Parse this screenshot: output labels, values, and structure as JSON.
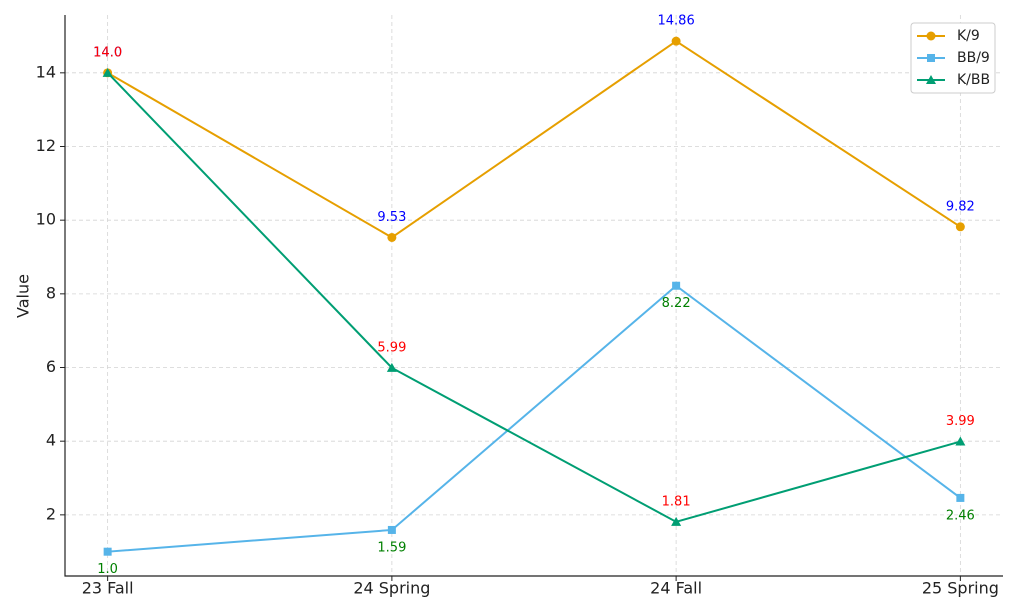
{
  "chart_data": {
    "type": "line",
    "y_label": "Value",
    "categories": [
      "23 Fall",
      "24 Spring",
      "24 Fall",
      "25 Spring"
    ],
    "series": [
      {
        "name": "K/9",
        "color": "#e69f00",
        "marker": "circle",
        "label_color": "#0000ff",
        "label_position": "above",
        "values": [
          14.0,
          9.53,
          14.86,
          9.82
        ],
        "value_labels": [
          "14.0",
          "9.53",
          "14.86",
          "9.82"
        ]
      },
      {
        "name": "BB/9",
        "color": "#56b4e9",
        "marker": "square",
        "label_color": "#008000",
        "label_position": "below",
        "values": [
          1.0,
          1.59,
          8.22,
          2.46
        ],
        "value_labels": [
          "1.0",
          "1.59",
          "8.22",
          "2.46"
        ]
      },
      {
        "name": "K/BB",
        "color": "#009e73",
        "marker": "triangle",
        "label_color": "#ff0000",
        "label_position": "above",
        "values": [
          14.0,
          5.99,
          1.81,
          3.99
        ],
        "value_labels": [
          "14.0",
          "5.99",
          "1.81",
          "3.99"
        ]
      }
    ],
    "ylim": [
      0.34,
      15.57
    ],
    "yticks": [
      2,
      4,
      6,
      8,
      10,
      12,
      14
    ],
    "grid": true,
    "legend": "upper right"
  }
}
